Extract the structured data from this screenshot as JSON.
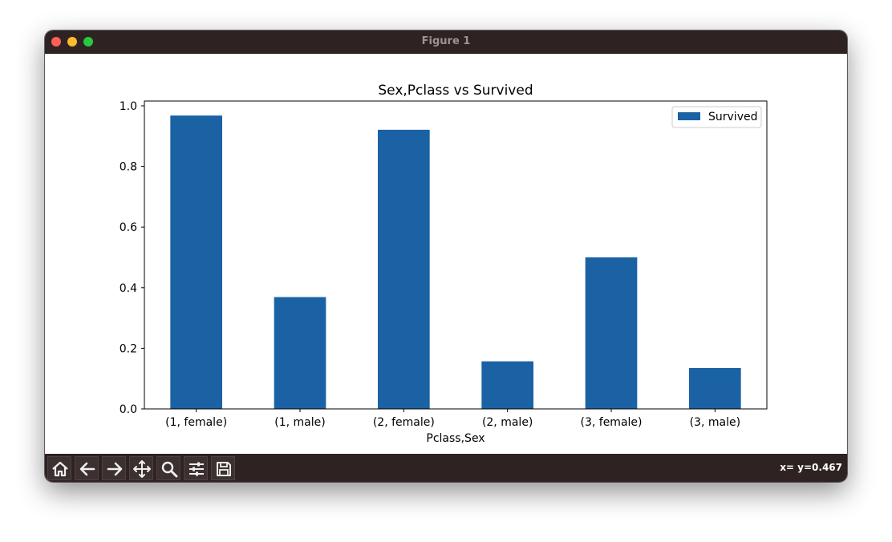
{
  "window": {
    "title": "Figure 1"
  },
  "toolbar": {
    "tools": [
      "home-icon",
      "back-arrow-icon",
      "forward-arrow-icon",
      "pan-icon",
      "zoom-icon",
      "configure-subplots-icon",
      "save-icon"
    ],
    "coords_text": "x= y=0.467"
  },
  "chart_data": {
    "type": "bar",
    "title": "Sex,Pclass vs Survived",
    "xlabel": "Pclass,Sex",
    "ylabel": "",
    "categories": [
      "(1, female)",
      "(1, male)",
      "(2, female)",
      "(2, male)",
      "(3, female)",
      "(3, male)"
    ],
    "series": [
      {
        "name": "Survived",
        "values": [
          0.968,
          0.369,
          0.921,
          0.157,
          0.5,
          0.135
        ],
        "color": "#1b62a5"
      }
    ],
    "ylim": [
      0,
      1.0
    ],
    "yticks": [
      "0.0",
      "0.2",
      "0.4",
      "0.6",
      "0.8",
      "1.0"
    ],
    "ytick_values": [
      0.0,
      0.2,
      0.4,
      0.6,
      0.8,
      1.0
    ],
    "grid": false,
    "legend": "top-right"
  }
}
